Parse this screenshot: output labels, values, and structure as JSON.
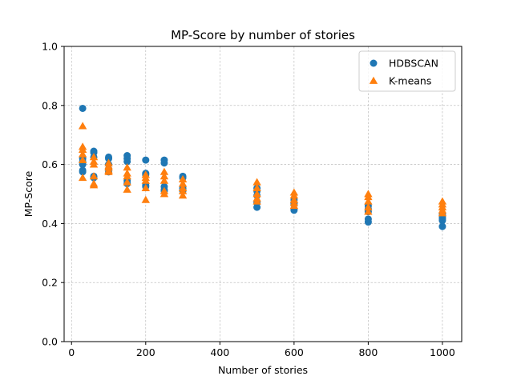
{
  "chart_data": {
    "type": "scatter",
    "title": "MP-Score by number of stories",
    "xlabel": "Number of stories",
    "ylabel": "MP-Score",
    "xlim": [
      -20,
      1052
    ],
    "ylim": [
      0.0,
      1.0
    ],
    "xticks": [
      0,
      200,
      400,
      600,
      800,
      1000
    ],
    "xtick_labels": [
      "0",
      "200",
      "400",
      "600",
      "800",
      "1000"
    ],
    "yticks": [
      0.0,
      0.2,
      0.4,
      0.6,
      0.8,
      1.0
    ],
    "ytick_labels": [
      "0.0",
      "0.2",
      "0.4",
      "0.6",
      "0.8",
      "1.0"
    ],
    "grid": true,
    "legend_position": "top-right",
    "series": [
      {
        "name": "HDBSCAN",
        "marker": "circle",
        "color": "#1f77b4",
        "points": [
          [
            30,
            0.79
          ],
          [
            30,
            0.62
          ],
          [
            30,
            0.61
          ],
          [
            30,
            0.6
          ],
          [
            30,
            0.58
          ],
          [
            30,
            0.575
          ],
          [
            60,
            0.645
          ],
          [
            60,
            0.64
          ],
          [
            60,
            0.625
          ],
          [
            60,
            0.56
          ],
          [
            60,
            0.555
          ],
          [
            100,
            0.625
          ],
          [
            100,
            0.62
          ],
          [
            100,
            0.6
          ],
          [
            100,
            0.585
          ],
          [
            100,
            0.575
          ],
          [
            150,
            0.63
          ],
          [
            150,
            0.62
          ],
          [
            150,
            0.61
          ],
          [
            150,
            0.545
          ],
          [
            150,
            0.535
          ],
          [
            200,
            0.615
          ],
          [
            200,
            0.57
          ],
          [
            200,
            0.565
          ],
          [
            200,
            0.53
          ],
          [
            200,
            0.525
          ],
          [
            250,
            0.615
          ],
          [
            250,
            0.605
          ],
          [
            250,
            0.525
          ],
          [
            250,
            0.515
          ],
          [
            250,
            0.51
          ],
          [
            300,
            0.56
          ],
          [
            300,
            0.555
          ],
          [
            300,
            0.52
          ],
          [
            300,
            0.515
          ],
          [
            300,
            0.51
          ],
          [
            500,
            0.52
          ],
          [
            500,
            0.51
          ],
          [
            500,
            0.495
          ],
          [
            500,
            0.47
          ],
          [
            500,
            0.455
          ],
          [
            600,
            0.48
          ],
          [
            600,
            0.47
          ],
          [
            600,
            0.465
          ],
          [
            600,
            0.45
          ],
          [
            600,
            0.445
          ],
          [
            800,
            0.46
          ],
          [
            800,
            0.45
          ],
          [
            800,
            0.44
          ],
          [
            800,
            0.415
          ],
          [
            800,
            0.405
          ],
          [
            1000,
            0.43
          ],
          [
            1000,
            0.42
          ],
          [
            1000,
            0.415
          ],
          [
            1000,
            0.41
          ],
          [
            1000,
            0.39
          ]
        ]
      },
      {
        "name": "K-means",
        "marker": "triangle",
        "color": "#ff7f0e",
        "points": [
          [
            30,
            0.73
          ],
          [
            30,
            0.66
          ],
          [
            30,
            0.65
          ],
          [
            30,
            0.635
          ],
          [
            30,
            0.615
          ],
          [
            30,
            0.555
          ],
          [
            60,
            0.625
          ],
          [
            60,
            0.61
          ],
          [
            60,
            0.6
          ],
          [
            60,
            0.56
          ],
          [
            60,
            0.535
          ],
          [
            60,
            0.53
          ],
          [
            100,
            0.605
          ],
          [
            100,
            0.595
          ],
          [
            100,
            0.59
          ],
          [
            100,
            0.58
          ],
          [
            100,
            0.575
          ],
          [
            150,
            0.59
          ],
          [
            150,
            0.57
          ],
          [
            150,
            0.56
          ],
          [
            150,
            0.54
          ],
          [
            150,
            0.515
          ],
          [
            200,
            0.565
          ],
          [
            200,
            0.555
          ],
          [
            200,
            0.545
          ],
          [
            200,
            0.52
          ],
          [
            200,
            0.48
          ],
          [
            250,
            0.575
          ],
          [
            250,
            0.56
          ],
          [
            250,
            0.545
          ],
          [
            250,
            0.51
          ],
          [
            250,
            0.5
          ],
          [
            300,
            0.55
          ],
          [
            300,
            0.535
          ],
          [
            300,
            0.52
          ],
          [
            300,
            0.51
          ],
          [
            300,
            0.495
          ],
          [
            500,
            0.54
          ],
          [
            500,
            0.52
          ],
          [
            500,
            0.5
          ],
          [
            500,
            0.485
          ],
          [
            500,
            0.475
          ],
          [
            600,
            0.505
          ],
          [
            600,
            0.495
          ],
          [
            600,
            0.48
          ],
          [
            600,
            0.47
          ],
          [
            600,
            0.46
          ],
          [
            800,
            0.5
          ],
          [
            800,
            0.49
          ],
          [
            800,
            0.475
          ],
          [
            800,
            0.455
          ],
          [
            800,
            0.44
          ],
          [
            1000,
            0.475
          ],
          [
            1000,
            0.465
          ],
          [
            1000,
            0.455
          ],
          [
            1000,
            0.445
          ],
          [
            1000,
            0.435
          ]
        ]
      }
    ]
  }
}
